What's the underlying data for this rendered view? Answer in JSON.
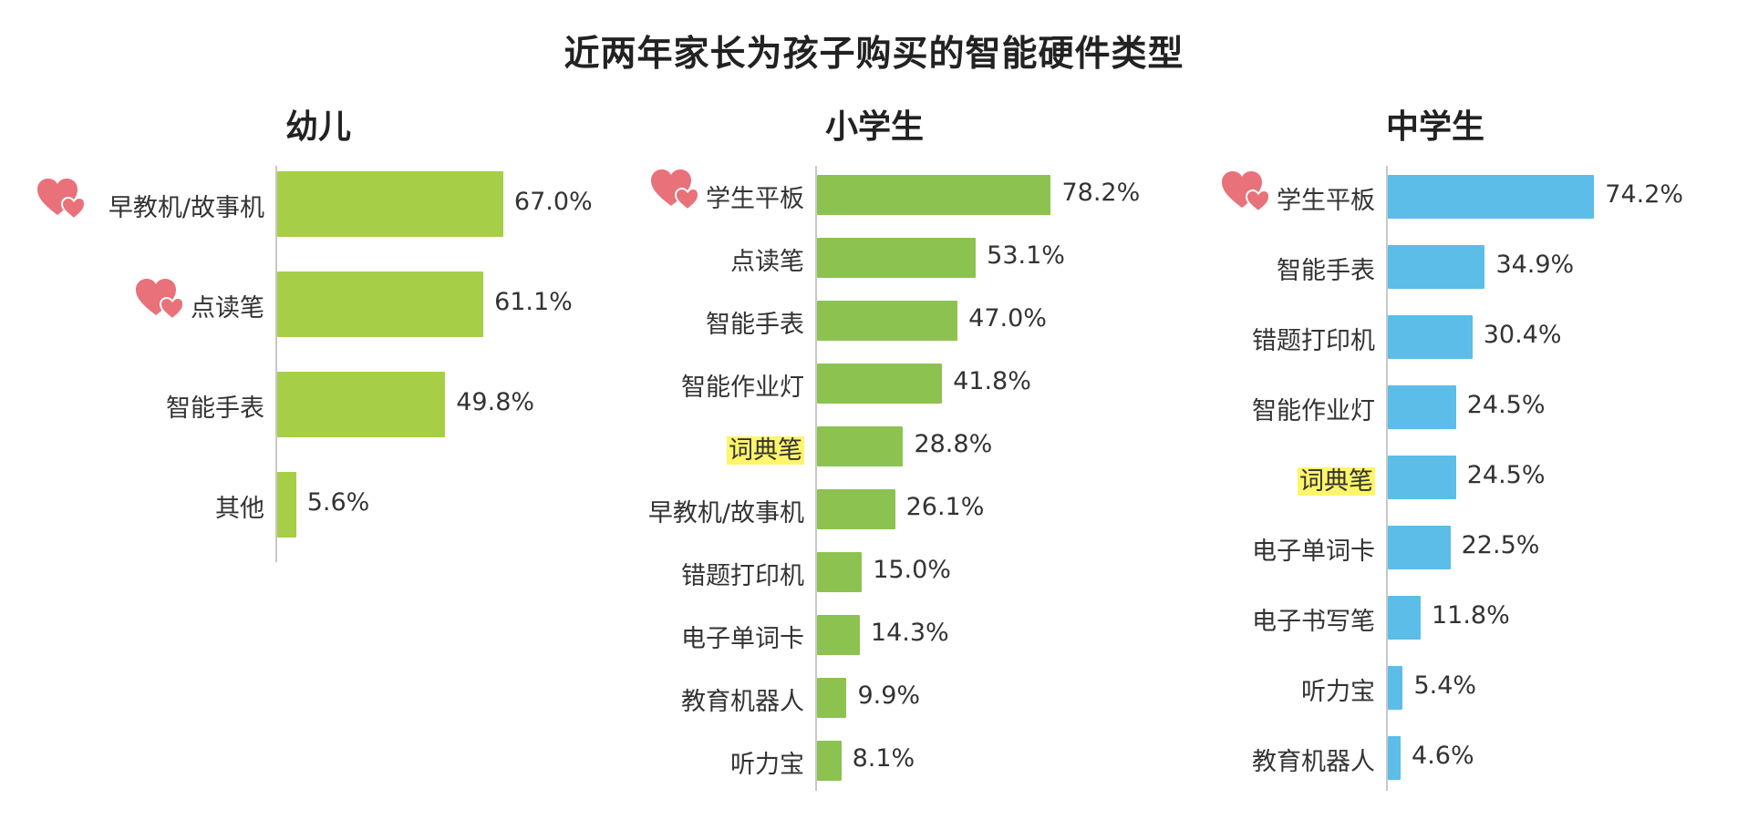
{
  "colors": {
    "kinder": "#a6cf47",
    "primary": "#8cc350",
    "middle": "#5bbde8",
    "heart": "#e8717a",
    "highlight": "#fff56a"
  },
  "chart_data": [
    {
      "type": "bar",
      "title": "近两年家长为孩子购买的智能硬件类型",
      "subtitle": "幼儿",
      "categories": [
        "早教机/故事机",
        "点读笔",
        "智能手表",
        "其他"
      ],
      "values": [
        67.0,
        61.1,
        49.8,
        5.6
      ],
      "value_labels": [
        "67.0%",
        "61.1%",
        "49.8%",
        "5.6%"
      ],
      "hearts": [
        true,
        true,
        false,
        false
      ],
      "highlighted": [
        false,
        false,
        false,
        false
      ],
      "color": "#a6cf47",
      "unit": "%",
      "xlim": [
        0,
        100
      ],
      "orientation": "horizontal"
    },
    {
      "type": "bar",
      "title": "近两年家长为孩子购买的智能硬件类型",
      "subtitle": "小学生",
      "categories": [
        "学生平板",
        "点读笔",
        "智能手表",
        "智能作业灯",
        "词典笔",
        "早教机/故事机",
        "错题打印机",
        "电子单词卡",
        "教育机器人",
        "听力宝"
      ],
      "values": [
        78.2,
        53.1,
        47.0,
        41.8,
        28.8,
        26.1,
        15.0,
        14.3,
        9.9,
        8.1
      ],
      "value_labels": [
        "78.2%",
        "53.1%",
        "47.0%",
        "41.8%",
        "28.8%",
        "26.1%",
        "15.0%",
        "14.3%",
        "9.9%",
        "8.1%"
      ],
      "hearts": [
        true,
        false,
        false,
        false,
        false,
        false,
        false,
        false,
        false,
        false
      ],
      "highlighted": [
        false,
        false,
        false,
        false,
        true,
        false,
        false,
        false,
        false,
        false
      ],
      "color": "#8cc350",
      "unit": "%",
      "xlim": [
        0,
        100
      ],
      "orientation": "horizontal"
    },
    {
      "type": "bar",
      "title": "近两年家长为孩子购买的智能硬件类型",
      "subtitle": "中学生",
      "categories": [
        "学生平板",
        "智能手表",
        "错题打印机",
        "智能作业灯",
        "词典笔",
        "电子单词卡",
        "电子书写笔",
        "听力宝",
        "教育机器人"
      ],
      "values": [
        74.2,
        34.9,
        30.4,
        24.5,
        24.5,
        22.5,
        11.8,
        5.4,
        4.6
      ],
      "value_labels": [
        "74.2%",
        "34.9%",
        "30.4%",
        "24.5%",
        "24.5%",
        "22.5%",
        "11.8%",
        "5.4%",
        "4.6%"
      ],
      "hearts": [
        true,
        false,
        false,
        false,
        false,
        false,
        false,
        false,
        false
      ],
      "highlighted": [
        false,
        false,
        false,
        false,
        true,
        false,
        false,
        false,
        false
      ],
      "color": "#5bbde8",
      "unit": "%",
      "xlim": [
        0,
        100
      ],
      "orientation": "horizontal"
    }
  ]
}
